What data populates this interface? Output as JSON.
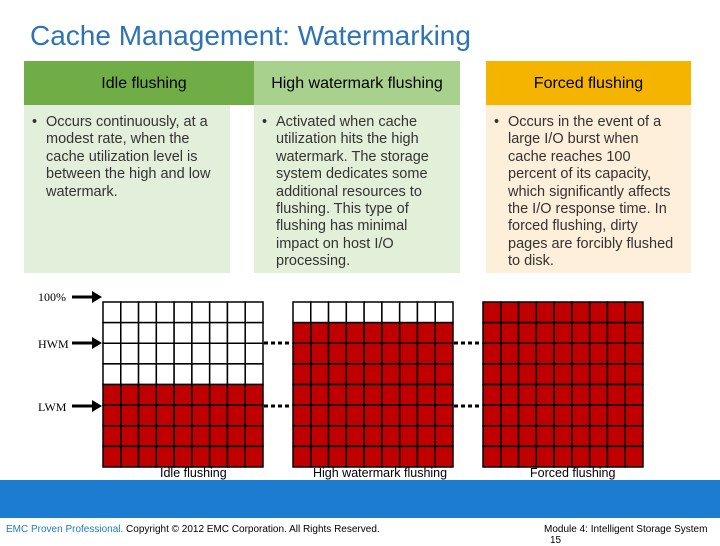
{
  "title": "Cache Management: Watermarking",
  "columns": [
    {
      "header": "Idle flushing",
      "body": "Occurs continuously, at a modest rate, when the cache utilization level is between the high and low watermark.",
      "head_color": "#70ad47",
      "body_color": "#e2efda"
    },
    {
      "header": "High watermark flushing",
      "body": "Activated when cache utilization hits the high watermark. The storage system dedicates some additional resources to flushing. This type of flushing has minimal impact on host I/O processing.",
      "head_color": "#a9d18e",
      "body_color": "#e2f0d9"
    },
    {
      "header": "Forced flushing",
      "body": "Occurs in the event of a large I/O burst when cache reaches 100 percent of its capacity, which significantly affects the I/O response time. In forced flushing, dirty pages are forcibly flushed to disk.",
      "head_color": "#f4b400",
      "body_color": "#fdefd9"
    }
  ],
  "levels": {
    "full": "100%",
    "hwm": "HWM",
    "lwm": "LWM"
  },
  "diagram": {
    "captions": [
      "Idle flushing",
      "High watermark flushing",
      "Forced flushing"
    ],
    "fill_color": "#c00000",
    "empty_color": "#ffffff",
    "grid_rows": 8,
    "grid_cols": 9,
    "filled_rows": [
      4,
      7,
      8
    ]
  },
  "footer": {
    "brand": "EMC Proven Professional.",
    "copyright": " Copyright © 2012 EMC Corporation. All Rights Reserved.",
    "module": "Module 4: Intelligent Storage System",
    "page": "15"
  }
}
